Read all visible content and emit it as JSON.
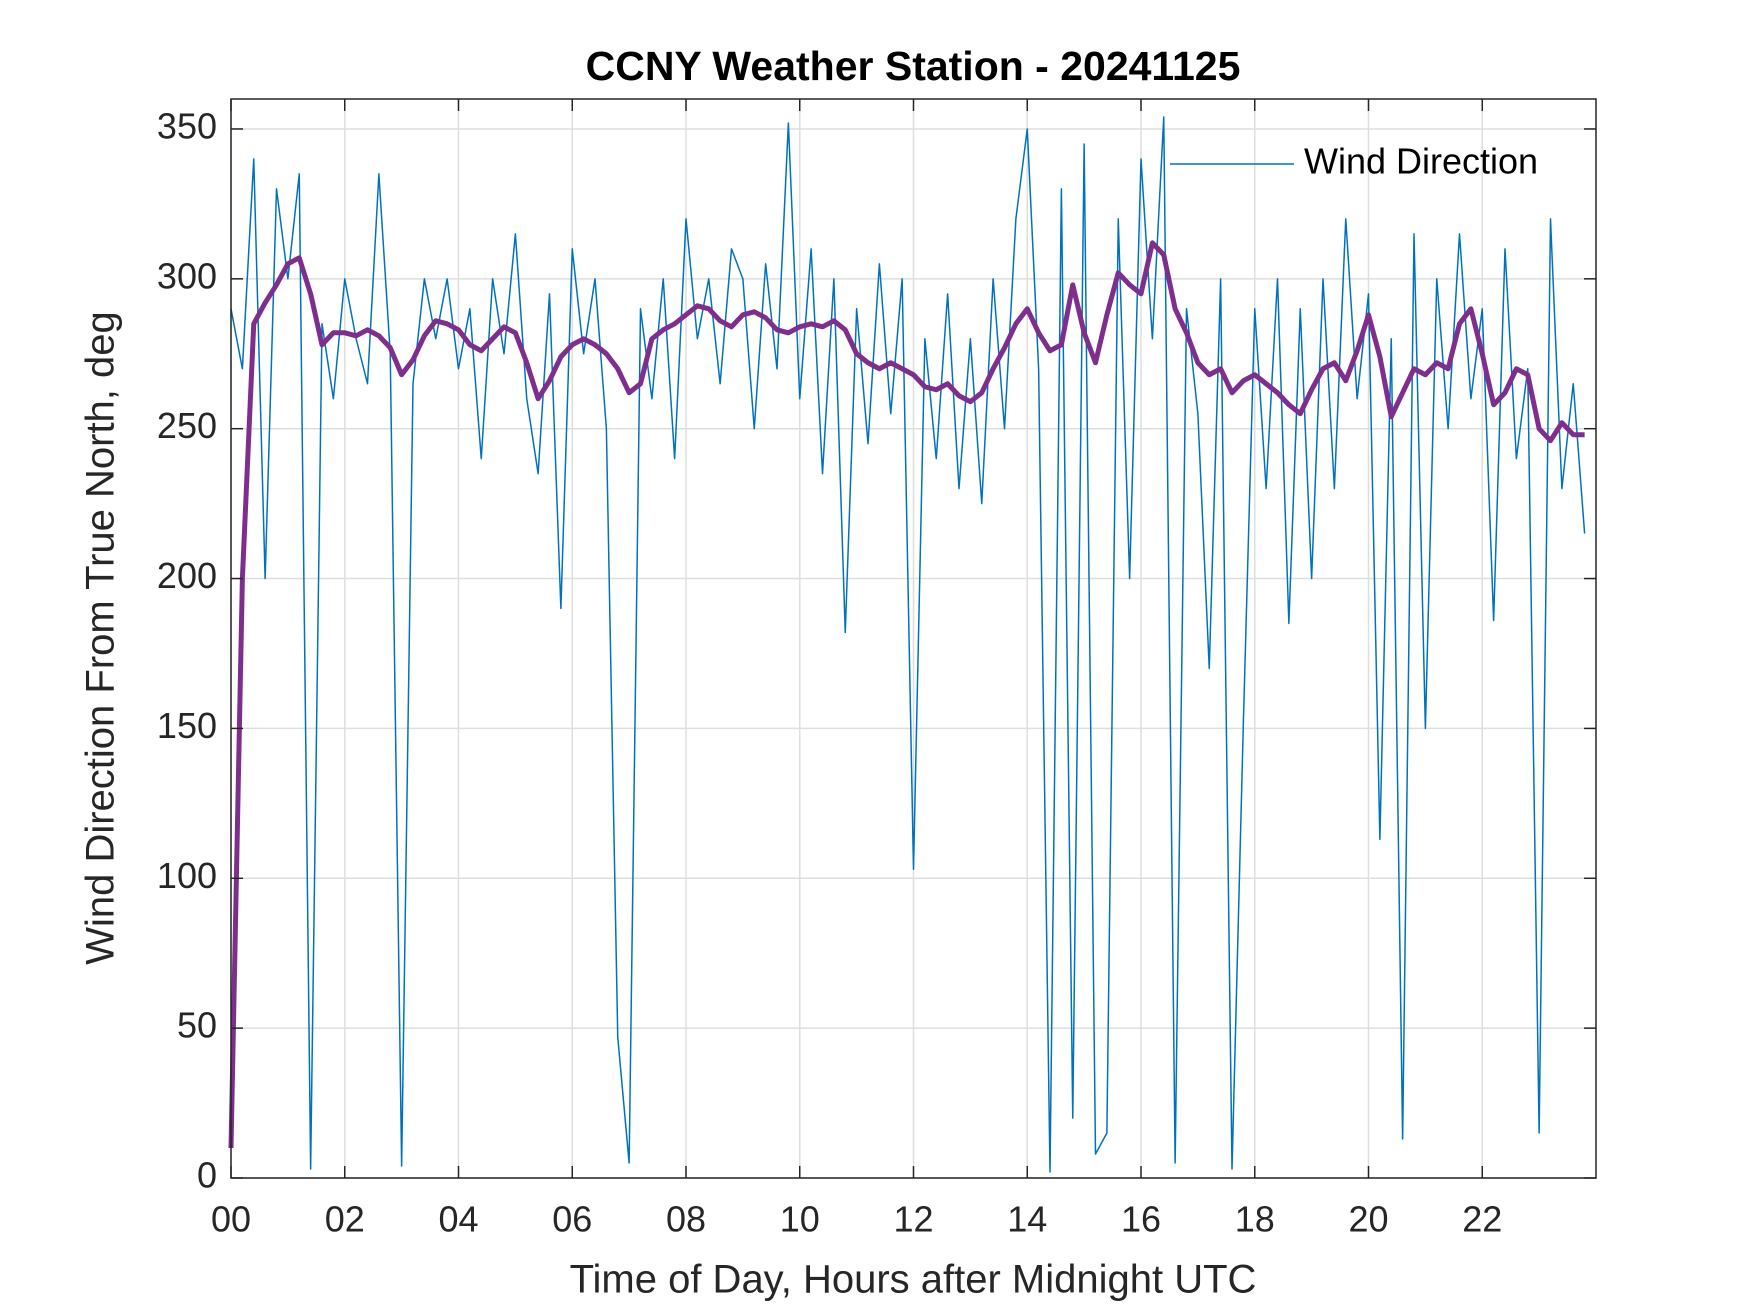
{
  "chart_data": {
    "type": "line",
    "title": "CCNY Weather Station - 20241125",
    "x_label": "Time of Day, Hours after Midnight UTC",
    "y_label": "Wind Direction From True North, deg",
    "xlim": [
      0,
      24
    ],
    "ylim": [
      0,
      360
    ],
    "xticks": [
      {
        "value": 0,
        "label": "00"
      },
      {
        "value": 2,
        "label": "02"
      },
      {
        "value": 4,
        "label": "04"
      },
      {
        "value": 6,
        "label": "06"
      },
      {
        "value": 8,
        "label": "08"
      },
      {
        "value": 10,
        "label": "10"
      },
      {
        "value": 12,
        "label": "12"
      },
      {
        "value": 14,
        "label": "14"
      },
      {
        "value": 16,
        "label": "16"
      },
      {
        "value": 18,
        "label": "18"
      },
      {
        "value": 20,
        "label": "20"
      },
      {
        "value": 22,
        "label": "22"
      }
    ],
    "yticks": [
      0,
      50,
      100,
      150,
      200,
      250,
      300,
      350
    ],
    "grid": true,
    "legend_position": "upper-right",
    "x": [
      0,
      0.2,
      0.4,
      0.6,
      0.8,
      1,
      1.2,
      1.4,
      1.6,
      1.8,
      2,
      2.2,
      2.4,
      2.6,
      2.8,
      3,
      3.2,
      3.4,
      3.6,
      3.8,
      4,
      4.2,
      4.4,
      4.6,
      4.8,
      5,
      5.2,
      5.4,
      5.6,
      5.8,
      6,
      6.2,
      6.4,
      6.6,
      6.8,
      7,
      7.2,
      7.4,
      7.6,
      7.8,
      8,
      8.2,
      8.4,
      8.6,
      8.8,
      9,
      9.2,
      9.4,
      9.6,
      9.8,
      10,
      10.2,
      10.4,
      10.6,
      10.8,
      11,
      11.2,
      11.4,
      11.6,
      11.8,
      12,
      12.2,
      12.4,
      12.6,
      12.8,
      13,
      13.2,
      13.4,
      13.6,
      13.8,
      14,
      14.2,
      14.4,
      14.6,
      14.8,
      15,
      15.2,
      15.4,
      15.6,
      15.8,
      16,
      16.2,
      16.4,
      16.6,
      16.8,
      17,
      17.2,
      17.4,
      17.6,
      17.8,
      18,
      18.2,
      18.4,
      18.6,
      18.8,
      19,
      19.2,
      19.4,
      19.6,
      19.8,
      20,
      20.2,
      20.4,
      20.6,
      20.8,
      21,
      21.2,
      21.4,
      21.6,
      21.8,
      22,
      22.2,
      22.4,
      22.6,
      22.8,
      23,
      23.2,
      23.4,
      23.6,
      23.8
    ],
    "series": [
      {
        "name": "Wind Direction",
        "color": "#0072bd",
        "width": 1.5,
        "values": [
          290,
          270,
          340,
          200,
          330,
          300,
          335,
          3,
          285,
          260,
          300,
          280,
          265,
          335,
          275,
          4,
          265,
          300,
          280,
          300,
          270,
          290,
          240,
          300,
          275,
          315,
          260,
          235,
          295,
          190,
          310,
          275,
          300,
          250,
          47,
          5,
          290,
          260,
          300,
          240,
          320,
          280,
          300,
          265,
          310,
          300,
          250,
          305,
          270,
          352,
          260,
          310,
          235,
          300,
          182,
          290,
          245,
          305,
          255,
          300,
          103,
          280,
          240,
          295,
          230,
          280,
          225,
          300,
          250,
          320,
          350,
          270,
          2,
          330,
          20,
          345,
          8,
          15,
          320,
          200,
          340,
          280,
          354,
          5,
          290,
          255,
          170,
          300,
          3,
          152,
          290,
          230,
          300,
          185,
          290,
          200,
          300,
          230,
          320,
          260,
          295,
          113,
          280,
          13,
          315,
          150,
          300,
          250,
          315,
          260,
          290,
          186,
          310,
          240,
          270,
          15,
          320,
          230,
          265,
          215
        ]
      },
      {
        "color": "#7e2f8e",
        "width": 5,
        "values": [
          10,
          200,
          285,
          292,
          298,
          305,
          307,
          295,
          278,
          282,
          282,
          281,
          283,
          281,
          277,
          268,
          273,
          281,
          286,
          285,
          283,
          278,
          276,
          280,
          284,
          282,
          272,
          260,
          266,
          274,
          278,
          280,
          278,
          275,
          270,
          262,
          265,
          280,
          283,
          285,
          288,
          291,
          290,
          286,
          284,
          288,
          289,
          287,
          283,
          282,
          284,
          285,
          284,
          286,
          283,
          275,
          272,
          270,
          272,
          270,
          268,
          264,
          263,
          265,
          261,
          259,
          262,
          270,
          277,
          285,
          290,
          282,
          276,
          278,
          298,
          282,
          272,
          288,
          302,
          298,
          295,
          312,
          308,
          290,
          282,
          272,
          268,
          270,
          262,
          266,
          268,
          265,
          262,
          258,
          255,
          263,
          270,
          272,
          266,
          276,
          288,
          274,
          254,
          262,
          270,
          268,
          272,
          270,
          285,
          290,
          275,
          258,
          262,
          270,
          268,
          250,
          246,
          252,
          248,
          248
        ]
      }
    ]
  }
}
